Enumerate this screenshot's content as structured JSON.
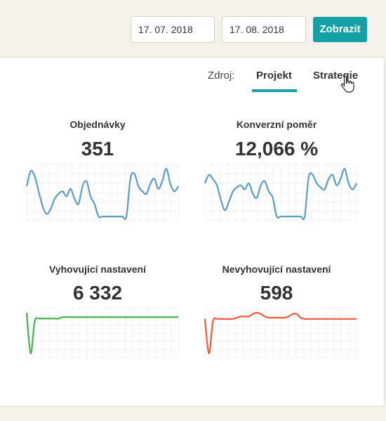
{
  "filters": {
    "date_from": "17. 07. 2018",
    "date_to": "17. 08. 2018",
    "show_label": "Zobrazit"
  },
  "source": {
    "label": "Zdroj:",
    "tabs": [
      {
        "label": "Projekt",
        "active": true
      },
      {
        "label": "Strategie",
        "active": false
      }
    ]
  },
  "colors": {
    "accent": "#14a0a5",
    "blue_line": "#5b9cc5",
    "green_line": "#4caf50",
    "red_line": "#f05a3c"
  },
  "metrics": [
    {
      "title": "Objednávky",
      "value": "351",
      "color": "#5b9cc5",
      "values": [
        12,
        18,
        16,
        10,
        4,
        1,
        3,
        7,
        9,
        10,
        8,
        11,
        7,
        5,
        12,
        14,
        8,
        5,
        0,
        0,
        0,
        0,
        0,
        0,
        0,
        0,
        15,
        17,
        12,
        10,
        9,
        13,
        15,
        11,
        14,
        19,
        13,
        10,
        12
      ]
    },
    {
      "title": "Konverzní poměr",
      "value": "12,066 %",
      "color": "#5b9cc5",
      "values": [
        16,
        20,
        18,
        15,
        8,
        3,
        7,
        12,
        14,
        15,
        13,
        16,
        11,
        9,
        15,
        17,
        12,
        9,
        0,
        0,
        0,
        0,
        0,
        0,
        0,
        0,
        19,
        20,
        16,
        14,
        13,
        18,
        20,
        15,
        18,
        23,
        16,
        13,
        16
      ]
    },
    {
      "title": "Vyhovující nastavení",
      "value": "6 332",
      "color": "#4caf50",
      "values": [
        4,
        -10,
        1,
        2,
        2,
        2,
        2,
        2,
        2,
        2.5,
        2.5,
        2.5,
        2.5,
        2.5,
        2.5,
        2.5,
        2.5,
        2.5,
        2.5,
        2.5,
        2.5,
        2.5,
        2.5,
        2.5,
        2.5,
        2.5,
        2.5,
        2.5,
        2.5,
        2.5,
        2.5,
        2.5,
        2.5,
        2.5,
        2.5,
        2.5,
        2.5,
        2.5,
        2.5
      ]
    },
    {
      "title": "Nevyhovující nastavení",
      "value": "598",
      "color": "#f05a3c",
      "values": [
        6,
        -8,
        5,
        6,
        6,
        6,
        6,
        6,
        6.5,
        7,
        7,
        7,
        8,
        8.5,
        8,
        7,
        6.5,
        6.5,
        6.5,
        6.5,
        6.5,
        7,
        8,
        8,
        6.5,
        6,
        6,
        6,
        6,
        6,
        6,
        6,
        6,
        6,
        6,
        6,
        6,
        6,
        6
      ]
    }
  ]
}
